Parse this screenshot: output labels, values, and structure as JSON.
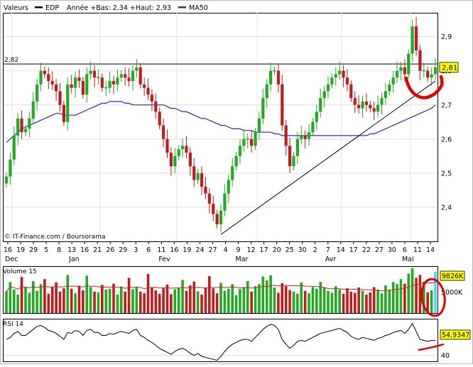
{
  "legend": {
    "label": "Valeurs",
    "symbol": "EDP",
    "range_text": "Année +Bas: 2,34 +Haut: 2,93",
    "ma_label": "MA50",
    "ma_color": "#2b2bb0"
  },
  "credit": "© IT-Finance.com / Boursorama",
  "colors": {
    "up": "#22aa22",
    "down": "#bb1e1e",
    "volume_last": "#4fd4f0",
    "annotation": "#e00000",
    "price_tag_bg": "#ffff00"
  },
  "chart_data": [
    {
      "type": "candlestick",
      "panel": "price",
      "ylim": [
        2.3,
        2.97
      ],
      "yticks": [
        "2,4",
        "2,5",
        "2,6",
        "2,7",
        "2,8",
        "2,9"
      ],
      "reference_line": {
        "label": "2,82",
        "value": 2.82
      },
      "last_price": "2,81",
      "xtick_labels": [
        "16",
        "19",
        "29",
        "5",
        "8",
        "13",
        "16",
        "21",
        "26",
        "29",
        "3",
        "6",
        "11",
        "16",
        "19",
        "24",
        "27",
        "4",
        "9",
        "12",
        "17",
        "20",
        "25",
        "30",
        "2",
        "7",
        "14",
        "17",
        "22",
        "27",
        "30",
        "6",
        "11",
        "14"
      ],
      "month_labels": [
        "Dec",
        "Jan",
        "Fev",
        "Mar",
        "Avr",
        "Mai"
      ],
      "closes": [
        2.49,
        2.54,
        2.61,
        2.66,
        2.62,
        2.63,
        2.66,
        2.71,
        2.76,
        2.8,
        2.79,
        2.77,
        2.76,
        2.74,
        2.7,
        2.65,
        2.76,
        2.75,
        2.78,
        2.77,
        2.73,
        2.79,
        2.8,
        2.78,
        2.78,
        2.75,
        2.75,
        2.77,
        2.76,
        2.78,
        2.79,
        2.78,
        2.77,
        2.8,
        2.81,
        2.76,
        2.75,
        2.73,
        2.71,
        2.68,
        2.64,
        2.6,
        2.56,
        2.52,
        2.55,
        2.57,
        2.58,
        2.56,
        2.52,
        2.48,
        2.5,
        2.46,
        2.44,
        2.41,
        2.38,
        2.35,
        2.39,
        2.44,
        2.48,
        2.52,
        2.55,
        2.58,
        2.6,
        2.6,
        2.58,
        2.62,
        2.66,
        2.72,
        2.76,
        2.8,
        2.8,
        2.76,
        2.64,
        2.58,
        2.52,
        2.55,
        2.6,
        2.61,
        2.6,
        2.62,
        2.65,
        2.68,
        2.72,
        2.74,
        2.76,
        2.78,
        2.79,
        2.8,
        2.78,
        2.76,
        2.72,
        2.7,
        2.69,
        2.71,
        2.7,
        2.69,
        2.68,
        2.7,
        2.72,
        2.74,
        2.76,
        2.78,
        2.8,
        2.81,
        2.79,
        2.85,
        2.93,
        2.86,
        2.8,
        2.8,
        2.78,
        2.79,
        2.81
      ],
      "ma50": [
        2.59,
        2.6,
        2.61,
        2.62,
        2.63,
        2.635,
        2.64,
        2.645,
        2.65,
        2.655,
        2.66,
        2.665,
        2.67,
        2.675,
        2.675,
        2.67,
        2.67,
        2.67,
        2.67,
        2.675,
        2.68,
        2.685,
        2.69,
        2.695,
        2.7,
        2.705,
        2.705,
        2.71,
        2.71,
        2.71,
        2.71,
        2.705,
        2.705,
        2.7,
        2.7,
        2.7,
        2.7,
        2.7,
        2.7,
        2.7,
        2.7,
        2.7,
        2.695,
        2.69,
        2.69,
        2.685,
        2.68,
        2.68,
        2.675,
        2.67,
        2.665,
        2.66,
        2.66,
        2.655,
        2.65,
        2.645,
        2.64,
        2.64,
        2.635,
        2.63,
        2.63,
        2.63,
        2.625,
        2.625,
        2.625,
        2.62,
        2.62,
        2.62,
        2.62,
        2.62,
        2.615,
        2.615,
        2.61,
        2.61,
        2.61,
        2.61,
        2.61,
        2.61,
        2.61,
        2.61,
        2.61,
        2.61,
        2.61,
        2.61,
        2.61,
        2.61,
        2.61,
        2.61,
        2.61,
        2.61,
        2.61,
        2.61,
        2.61,
        2.61,
        2.61,
        2.615,
        2.615,
        2.62,
        2.625,
        2.63,
        2.635,
        2.64,
        2.645,
        2.65,
        2.655,
        2.66,
        2.665,
        2.67,
        2.675,
        2.68,
        2.685,
        2.69,
        2.7
      ],
      "trendline": {
        "from_index": 56,
        "from_value": 2.32,
        "to_index": 112,
        "to_value": 2.77
      }
    },
    {
      "type": "bar",
      "panel": "volume",
      "title": "Volume 15",
      "ylim": [
        0,
        11000
      ],
      "yticks": [
        "5000K"
      ],
      "last_value_label": "9826K",
      "values": [
        5200,
        7400,
        5600,
        4400,
        8600,
        6100,
        4800,
        7600,
        5300,
        6900,
        8100,
        4600,
        6200,
        7300,
        5100,
        5900,
        9100,
        5800,
        4700,
        6500,
        5400,
        8900,
        6200,
        5100,
        4900,
        6700,
        5600,
        5800,
        7000,
        4400,
        6300,
        5100,
        8400,
        5700,
        6300,
        5100,
        4700,
        9300,
        6100,
        5400,
        4600,
        5900,
        6800,
        4500,
        5700,
        6100,
        7900,
        5300,
        6600,
        7500,
        5200,
        4400,
        6100,
        8800,
        5900,
        4700,
        7200,
        5300,
        5800,
        6900,
        4300,
        5700,
        6200,
        7600,
        5100,
        6400,
        6900,
        8700,
        7800,
        9000,
        6100,
        4800,
        7100,
        6400,
        5500,
        5100,
        4600,
        7300,
        5300,
        4700,
        6200,
        5800,
        7400,
        6100,
        5300,
        4800,
        6400,
        5600,
        4600,
        5900,
        5100,
        4800,
        6100,
        5300,
        4400,
        4900,
        6200,
        5600,
        4700,
        6600,
        5500,
        7400,
        6900,
        8100,
        7000,
        9400,
        10700,
        8400,
        9100,
        7500,
        4900,
        5400,
        9826
      ]
    },
    {
      "type": "line",
      "panel": "rsi",
      "title": "RSI 14",
      "ylim": [
        34,
        76
      ],
      "yticks": [
        "40"
      ],
      "last_value_label": "54,9347",
      "values": [
        56,
        58,
        62,
        64,
        60,
        60,
        63,
        66,
        69,
        70,
        68,
        65,
        64,
        62,
        59,
        56,
        63,
        62,
        65,
        64,
        60,
        65,
        66,
        63,
        63,
        60,
        60,
        62,
        61,
        63,
        64,
        63,
        62,
        65,
        66,
        60,
        58,
        55,
        53,
        50,
        47,
        45,
        43,
        41,
        44,
        46,
        47,
        45,
        42,
        40,
        42,
        39,
        38,
        37,
        36,
        35,
        39,
        44,
        48,
        51,
        53,
        55,
        56,
        56,
        54,
        58,
        62,
        66,
        69,
        71,
        70,
        66,
        56,
        51,
        47,
        50,
        54,
        55,
        54,
        56,
        58,
        60,
        62,
        63,
        64,
        65,
        66,
        67,
        65,
        63,
        59,
        57,
        56,
        58,
        57,
        56,
        55,
        57,
        58,
        60,
        61,
        63,
        64,
        65,
        62,
        66,
        72,
        64,
        56,
        55,
        54,
        55,
        54.9347
      ]
    }
  ]
}
